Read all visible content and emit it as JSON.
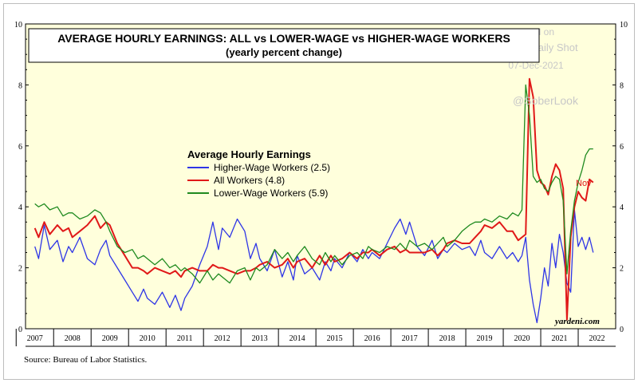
{
  "chart_data": {
    "type": "line",
    "title": "AVERAGE HOURLY EARNINGS: ALL vs LOWER-WAGE vs HIGHER-WAGE WORKERS",
    "subtitle": "(yearly percent change)",
    "legend_title": "Average Hourly Earnings",
    "legend_placement": "center-left",
    "ylim": [
      0,
      10
    ],
    "y_ticks": [
      "0",
      "2",
      "4",
      "6",
      "8",
      "10"
    ],
    "xlim": [
      2006.75,
      2022.5
    ],
    "x_tick_labels": [
      "2007",
      "2008",
      "2009",
      "2010",
      "2011",
      "2012",
      "2013",
      "2014",
      "2015",
      "2016",
      "2017",
      "2018",
      "2019",
      "2020",
      "2021",
      "2022"
    ],
    "grid": false,
    "annotation_nov": "Nov",
    "watermark": [
      "Posted on",
      "The Daily Shot",
      "07-Dec-2021",
      "@SoberLook"
    ],
    "credit": "yardeni.com",
    "background_color": "#ffffdc",
    "series": [
      {
        "name": "Higher-Wage Workers (2.5)",
        "color": "#2e35e6",
        "x": [
          2007.0,
          2007.1,
          2007.25,
          2007.4,
          2007.6,
          2007.75,
          2007.9,
          2008.0,
          2008.2,
          2008.4,
          2008.6,
          2008.75,
          2008.9,
          2009.0,
          2009.2,
          2009.4,
          2009.6,
          2009.75,
          2009.9,
          2010.0,
          2010.2,
          2010.4,
          2010.6,
          2010.75,
          2010.9,
          2011.0,
          2011.2,
          2011.4,
          2011.6,
          2011.75,
          2011.9,
          2012.0,
          2012.2,
          2012.4,
          2012.6,
          2012.75,
          2012.9,
          2013.0,
          2013.2,
          2013.4,
          2013.6,
          2013.75,
          2013.9,
          2014.0,
          2014.2,
          2014.4,
          2014.6,
          2014.75,
          2014.9,
          2015.0,
          2015.2,
          2015.4,
          2015.6,
          2015.75,
          2015.9,
          2016.0,
          2016.2,
          2016.4,
          2016.6,
          2016.75,
          2016.9,
          2017.0,
          2017.2,
          2017.4,
          2017.6,
          2017.75,
          2017.9,
          2018.0,
          2018.2,
          2018.4,
          2018.6,
          2018.75,
          2018.9,
          2019.0,
          2019.2,
          2019.4,
          2019.6,
          2019.75,
          2019.9,
          2020.0,
          2020.1,
          2020.2,
          2020.3,
          2020.4,
          2020.5,
          2020.6,
          2020.7,
          2020.8,
          2020.9,
          2021.0,
          2021.1,
          2021.2,
          2021.3,
          2021.4,
          2021.5,
          2021.6,
          2021.7,
          2021.8,
          2021.9
        ],
        "values": [
          2.7,
          2.3,
          3.4,
          2.6,
          2.9,
          2.2,
          2.7,
          2.5,
          3.0,
          2.3,
          2.1,
          2.6,
          2.9,
          2.4,
          2.0,
          1.6,
          1.2,
          0.9,
          1.3,
          1.0,
          0.8,
          1.2,
          0.7,
          1.1,
          0.6,
          1.0,
          1.4,
          2.1,
          2.7,
          3.5,
          2.6,
          3.3,
          3.0,
          3.6,
          3.2,
          2.3,
          2.8,
          2.3,
          1.9,
          2.6,
          1.7,
          2.2,
          1.6,
          2.4,
          1.8,
          2.0,
          1.6,
          2.2,
          1.9,
          2.3,
          2.0,
          2.5,
          2.2,
          2.6,
          2.3,
          2.5,
          2.3,
          2.8,
          3.3,
          3.6,
          3.1,
          3.5,
          2.7,
          2.4,
          2.9,
          2.3,
          2.6,
          2.5,
          2.8,
          2.6,
          2.7,
          2.4,
          2.9,
          2.5,
          2.3,
          2.7,
          2.3,
          2.5,
          2.2,
          2.4,
          3.0,
          1.6,
          0.8,
          0.2,
          1.0,
          2.0,
          1.4,
          2.8,
          2.0,
          3.1,
          2.5,
          1.5,
          1.2,
          3.9,
          2.7,
          3.0,
          2.6,
          3.0,
          2.5
        ]
      },
      {
        "name": "All Workers (4.8)",
        "color": "#e01818",
        "x": [
          2007.0,
          2007.1,
          2007.25,
          2007.4,
          2007.6,
          2007.75,
          2007.9,
          2008.0,
          2008.2,
          2008.4,
          2008.6,
          2008.75,
          2008.9,
          2009.0,
          2009.2,
          2009.4,
          2009.6,
          2009.75,
          2009.9,
          2010.0,
          2010.2,
          2010.4,
          2010.6,
          2010.75,
          2010.9,
          2011.0,
          2011.2,
          2011.4,
          2011.6,
          2011.75,
          2011.9,
          2012.0,
          2012.2,
          2012.4,
          2012.6,
          2012.75,
          2012.9,
          2013.0,
          2013.2,
          2013.4,
          2013.6,
          2013.75,
          2013.9,
          2014.0,
          2014.2,
          2014.4,
          2014.6,
          2014.75,
          2014.9,
          2015.0,
          2015.2,
          2015.4,
          2015.6,
          2015.75,
          2015.9,
          2016.0,
          2016.2,
          2016.4,
          2016.6,
          2016.75,
          2016.9,
          2017.0,
          2017.2,
          2017.4,
          2017.6,
          2017.75,
          2017.9,
          2018.0,
          2018.2,
          2018.4,
          2018.6,
          2018.75,
          2018.9,
          2019.0,
          2019.2,
          2019.4,
          2019.6,
          2019.75,
          2019.9,
          2020.0,
          2020.1,
          2020.2,
          2020.3,
          2020.4,
          2020.5,
          2020.6,
          2020.7,
          2020.8,
          2020.9,
          2021.0,
          2021.1,
          2021.2,
          2021.3,
          2021.4,
          2021.5,
          2021.6,
          2021.7,
          2021.8,
          2021.9
        ],
        "values": [
          3.3,
          3.0,
          3.5,
          3.1,
          3.4,
          3.2,
          3.3,
          3.0,
          3.2,
          3.4,
          3.7,
          3.3,
          3.5,
          3.4,
          2.8,
          2.4,
          2.0,
          2.0,
          1.9,
          1.8,
          2.0,
          1.9,
          1.8,
          1.9,
          1.7,
          1.9,
          2.0,
          1.9,
          1.9,
          2.1,
          2.0,
          2.0,
          1.9,
          1.8,
          1.9,
          1.9,
          2.0,
          2.1,
          2.2,
          2.0,
          2.1,
          2.3,
          2.0,
          2.2,
          2.3,
          2.0,
          2.4,
          2.1,
          2.4,
          2.2,
          2.3,
          2.5,
          2.3,
          2.5,
          2.5,
          2.6,
          2.4,
          2.6,
          2.7,
          2.5,
          2.6,
          2.5,
          2.5,
          2.5,
          2.6,
          2.4,
          2.6,
          2.8,
          2.9,
          2.8,
          2.8,
          3.0,
          3.2,
          3.4,
          3.3,
          3.5,
          3.2,
          3.2,
          2.9,
          3.0,
          3.1,
          8.2,
          7.6,
          5.2,
          4.8,
          4.7,
          4.4,
          5.0,
          5.4,
          5.2,
          4.6,
          0.3,
          3.0,
          4.0,
          4.5,
          4.3,
          4.2,
          4.9,
          4.8
        ]
      },
      {
        "name": "Lower-Wage Workers (5.9)",
        "color": "#1f8a1f",
        "x": [
          2007.0,
          2007.1,
          2007.25,
          2007.4,
          2007.6,
          2007.75,
          2007.9,
          2008.0,
          2008.2,
          2008.4,
          2008.6,
          2008.75,
          2008.9,
          2009.0,
          2009.2,
          2009.4,
          2009.6,
          2009.75,
          2009.9,
          2010.0,
          2010.2,
          2010.4,
          2010.6,
          2010.75,
          2010.9,
          2011.0,
          2011.2,
          2011.4,
          2011.6,
          2011.75,
          2011.9,
          2012.0,
          2012.2,
          2012.4,
          2012.6,
          2012.75,
          2012.9,
          2013.0,
          2013.2,
          2013.4,
          2013.6,
          2013.75,
          2013.9,
          2014.0,
          2014.2,
          2014.4,
          2014.6,
          2014.75,
          2014.9,
          2015.0,
          2015.2,
          2015.4,
          2015.6,
          2015.75,
          2015.9,
          2016.0,
          2016.2,
          2016.4,
          2016.6,
          2016.75,
          2016.9,
          2017.0,
          2017.2,
          2017.4,
          2017.6,
          2017.75,
          2017.9,
          2018.0,
          2018.2,
          2018.4,
          2018.6,
          2018.75,
          2018.9,
          2019.0,
          2019.2,
          2019.4,
          2019.6,
          2019.75,
          2019.9,
          2020.0,
          2020.1,
          2020.2,
          2020.3,
          2020.4,
          2020.5,
          2020.6,
          2020.7,
          2020.8,
          2020.9,
          2021.0,
          2021.1,
          2021.2,
          2021.3,
          2021.4,
          2021.5,
          2021.6,
          2021.7,
          2021.8,
          2021.9
        ],
        "values": [
          4.1,
          4.0,
          4.1,
          3.9,
          4.0,
          3.7,
          3.8,
          3.8,
          3.6,
          3.7,
          3.9,
          3.8,
          3.5,
          3.2,
          2.7,
          2.5,
          2.6,
          2.3,
          2.4,
          2.3,
          2.1,
          2.3,
          2.0,
          2.1,
          1.9,
          2.0,
          1.8,
          1.5,
          1.9,
          1.6,
          1.8,
          1.7,
          1.5,
          1.9,
          2.0,
          1.6,
          2.0,
          1.9,
          2.1,
          2.6,
          2.3,
          2.5,
          2.2,
          2.4,
          2.7,
          2.3,
          2.1,
          2.5,
          2.2,
          2.4,
          2.1,
          2.4,
          2.5,
          2.3,
          2.7,
          2.6,
          2.5,
          2.7,
          2.6,
          2.8,
          2.6,
          2.9,
          2.7,
          2.8,
          2.6,
          2.8,
          3.0,
          2.7,
          2.9,
          3.2,
          3.4,
          3.5,
          3.5,
          3.6,
          3.5,
          3.7,
          3.6,
          3.8,
          3.7,
          3.9,
          8.0,
          7.0,
          5.0,
          4.8,
          4.9,
          4.6,
          4.5,
          4.8,
          5.0,
          4.9,
          4.2,
          1.8,
          3.2,
          4.2,
          4.8,
          5.2,
          5.7,
          5.9,
          5.9
        ]
      }
    ]
  },
  "source_note": "Source: Bureau of Labor Statistics."
}
